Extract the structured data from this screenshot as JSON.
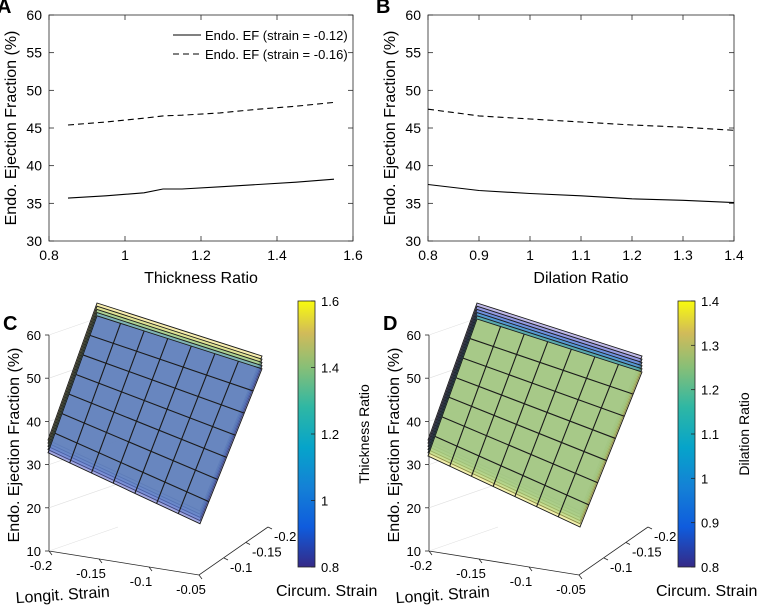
{
  "chart_data": [
    {
      "panel": "A",
      "type": "line",
      "xlabel": "Thickness Ratio",
      "ylabel": "Endo. Ejection Fraction (%)",
      "xlim": [
        0.8,
        1.6
      ],
      "ylim": [
        30,
        60
      ],
      "xticks": [
        "0.8",
        "1",
        "1.2",
        "1.4",
        "1.6"
      ],
      "yticks": [
        "30",
        "35",
        "40",
        "45",
        "50",
        "55",
        "60"
      ],
      "legend": "top-right",
      "series": [
        {
          "name": "Endo. EF (strain = -0.12)",
          "style": "solid",
          "x": [
            0.85,
            0.95,
            1.05,
            1.1,
            1.15,
            1.25,
            1.35,
            1.45,
            1.55
          ],
          "y": [
            35.7,
            36.0,
            36.4,
            36.9,
            36.9,
            37.2,
            37.5,
            37.8,
            38.2
          ]
        },
        {
          "name": "Endo. EF (strain = -0.16)",
          "style": "dashed",
          "x": [
            0.85,
            0.95,
            1.05,
            1.1,
            1.15,
            1.25,
            1.35,
            1.45,
            1.55
          ],
          "y": [
            45.4,
            45.8,
            46.3,
            46.6,
            46.7,
            47.0,
            47.5,
            47.9,
            48.4
          ]
        }
      ]
    },
    {
      "panel": "B",
      "type": "line",
      "xlabel": "Dilation Ratio",
      "ylabel": "Endo. Ejection Fraction (%)",
      "xlim": [
        0.8,
        1.4
      ],
      "ylim": [
        30,
        60
      ],
      "xticks": [
        "0.8",
        "0.9",
        "1",
        "1.1",
        "1.2",
        "1.3",
        "1.4"
      ],
      "yticks": [
        "30",
        "35",
        "40",
        "45",
        "50",
        "55",
        "60"
      ],
      "series": [
        {
          "name": "Endo. EF (strain = -0.12)",
          "style": "solid",
          "x": [
            0.8,
            0.9,
            1.0,
            1.1,
            1.2,
            1.3,
            1.4
          ],
          "y": [
            37.5,
            36.7,
            36.3,
            36.0,
            35.6,
            35.4,
            35.1
          ]
        },
        {
          "name": "Endo. EF (strain = -0.16)",
          "style": "dashed",
          "x": [
            0.8,
            0.9,
            1.0,
            1.1,
            1.2,
            1.3,
            1.4
          ],
          "y": [
            47.5,
            46.6,
            46.2,
            45.8,
            45.4,
            45.1,
            44.7
          ]
        }
      ]
    },
    {
      "panel": "C",
      "type": "surface3d",
      "xlabel": "Longit. Strain",
      "ylabel": "Circum. Strain",
      "zlabel": "Endo. Ejection Fraction (%)",
      "xticks": [
        "-0.2",
        "-0.15",
        "-0.1",
        "-0.05"
      ],
      "yticks": [
        "-0.1",
        "-0.15",
        "-0.2"
      ],
      "zticks": [
        "10",
        "20",
        "30",
        "40",
        "50",
        "60"
      ],
      "zlim": [
        10,
        60
      ],
      "colorbar": {
        "label": "Thickness Ratio",
        "ticks": [
          "0.8",
          "1",
          "1.2",
          "1.4",
          "1.6"
        ],
        "range": [
          0.8,
          1.6
        ]
      },
      "layers": [
        {
          "ratio": 1.6,
          "color": "#f0de6c"
        },
        {
          "ratio": 1.4,
          "color": "#c8d77d"
        },
        {
          "ratio": 1.2,
          "color": "#7fc28f"
        },
        {
          "ratio": 1.0,
          "color": "#5a9bd0"
        },
        {
          "ratio": 0.8,
          "color": "#5561c8"
        }
      ]
    },
    {
      "panel": "D",
      "type": "surface3d",
      "xlabel": "Longit. Strain",
      "ylabel": "Circum. Strain",
      "zlabel": "Endo. Ejection Fraction (%)",
      "xticks": [
        "-0.2",
        "-0.15",
        "-0.1",
        "-0.05"
      ],
      "yticks": [
        "-0.1",
        "-0.15",
        "-0.2"
      ],
      "zticks": [
        "10",
        "20",
        "30",
        "40",
        "50",
        "60"
      ],
      "zlim": [
        10,
        60
      ],
      "colorbar": {
        "label": "Dilation Ratio",
        "ticks": [
          "0.8",
          "0.9",
          "1",
          "1.1",
          "1.2",
          "1.3",
          "1.4"
        ],
        "range": [
          0.8,
          1.4
        ]
      },
      "layers": [
        {
          "ratio": 0.8,
          "color": "#8a7fd6"
        },
        {
          "ratio": 0.9,
          "color": "#6f80d8"
        },
        {
          "ratio": 1.0,
          "color": "#4f86d8"
        },
        {
          "ratio": 1.1,
          "color": "#3fa0c8"
        },
        {
          "ratio": 1.2,
          "color": "#5cb88f"
        },
        {
          "ratio": 1.4,
          "color": "#e8e36a"
        }
      ]
    }
  ]
}
